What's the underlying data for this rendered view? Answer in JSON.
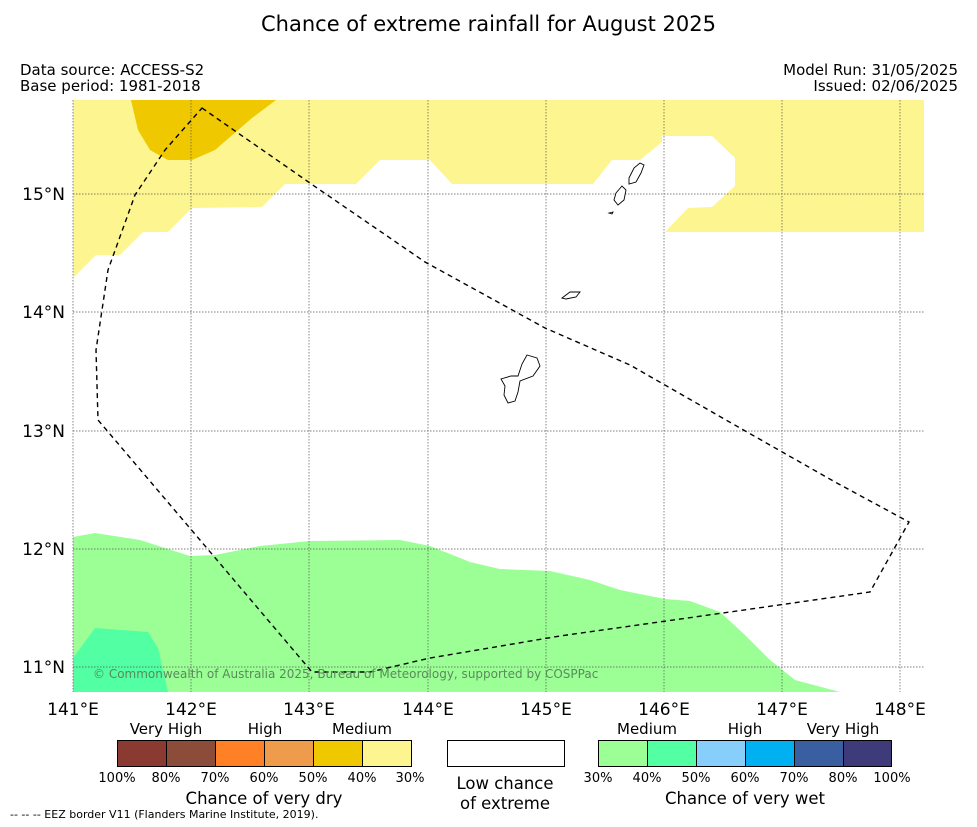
{
  "title": "Chance of extreme rainfall for August 2025",
  "meta_left": {
    "source": "Data source: ACCESS-S2",
    "base": "Base period: 1981-2018"
  },
  "meta_right": {
    "run": "Model Run: 31/05/2025",
    "issued": "Issued: 02/06/2025"
  },
  "map": {
    "lon_labels": [
      "141°E",
      "142°E",
      "143°E",
      "144°E",
      "145°E",
      "146°E",
      "147°E",
      "148°E"
    ],
    "lat_labels": [
      "15°N",
      "14°N",
      "13°N",
      "12°N",
      "11°N"
    ],
    "copyright": "© Commonwealth of Australia 2025, Bureau of Meteorology, supported by COSPPac",
    "colors": {
      "medium_dry": "#fdf590",
      "high_dry": "#f0c800",
      "medium_wet": "#9bff96",
      "high_wet": "#52ffa2"
    }
  },
  "legend": {
    "dry": {
      "title": "Chance of very dry",
      "categories": [
        "Very High",
        "High",
        "Medium"
      ],
      "ticks": [
        "100%",
        "80%",
        "70%",
        "60%",
        "50%",
        "40%",
        "30%"
      ],
      "colors": [
        "#8b3a32",
        "#8b4c3a",
        "#ff8025",
        "#ee9c4c",
        "#f0c800",
        "#fdf590"
      ]
    },
    "low": {
      "line1": "Low chance",
      "line2": "of extreme"
    },
    "wet": {
      "title": "Chance of very wet",
      "categories": [
        "Medium",
        "High",
        "Very High"
      ],
      "ticks": [
        "30%",
        "40%",
        "50%",
        "60%",
        "70%",
        "80%",
        "100%"
      ],
      "colors": [
        "#9bff96",
        "#52ffa2",
        "#87cefa",
        "#00b0f0",
        "#3a5fa0",
        "#3f3a7a"
      ]
    }
  },
  "footnote": "--  --  -- EEZ border V11 (Flanders Marine Institute, 2019)."
}
